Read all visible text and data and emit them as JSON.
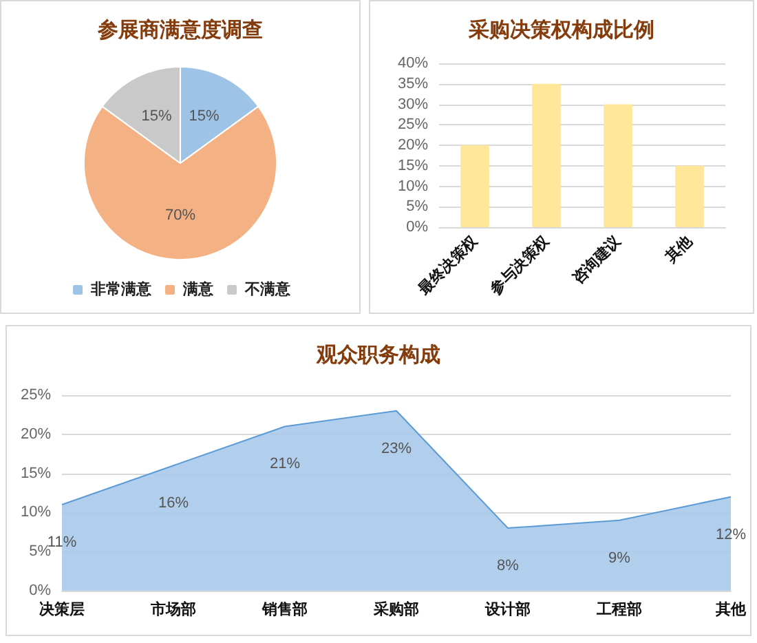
{
  "chart_data": [
    {
      "type": "pie",
      "title": "参展商满意度调查",
      "categories": [
        "非常满意",
        "满意",
        "不满意"
      ],
      "values": [
        15,
        70,
        15
      ],
      "colors": [
        "#9dc3e6",
        "#f4b183",
        "#c9c9c9"
      ],
      "value_labels": [
        "15%",
        "70%",
        "15%"
      ],
      "legend": "bottom"
    },
    {
      "type": "bar",
      "title": "采购决策权构成比例",
      "categories": [
        "最终决策权",
        "参与决策权",
        "咨询建议",
        "其他"
      ],
      "values": [
        20,
        35,
        30,
        15
      ],
      "color": "#ffe699",
      "ylim": [
        0,
        40
      ],
      "yticks": [
        {
          "value": 0,
          "label": "0%"
        },
        {
          "value": 5,
          "label": "5%"
        },
        {
          "value": 10,
          "label": "10%"
        },
        {
          "value": 15,
          "label": "15%"
        },
        {
          "value": 20,
          "label": "20%"
        },
        {
          "value": 25,
          "label": "25%"
        },
        {
          "value": 30,
          "label": "30%"
        },
        {
          "value": 35,
          "label": "35%"
        },
        {
          "value": 40,
          "label": "40%"
        }
      ],
      "grid": "y"
    },
    {
      "type": "area",
      "title": "观众职务构成",
      "categories": [
        "决策层",
        "市场部",
        "销售部",
        "采购部",
        "设计部",
        "工程部",
        "其他"
      ],
      "values": [
        11,
        16,
        21,
        23,
        8,
        9,
        12
      ],
      "color": "#5b9bd5",
      "value_labels": [
        "11%",
        "16%",
        "21%",
        "23%",
        "8%",
        "9%",
        "12%"
      ],
      "ylim": [
        0,
        25
      ],
      "yticks": [
        {
          "value": 0,
          "label": "0%"
        },
        {
          "value": 5,
          "label": "5%"
        },
        {
          "value": 10,
          "label": "10%"
        },
        {
          "value": 15,
          "label": "15%"
        },
        {
          "value": 20,
          "label": "20%"
        },
        {
          "value": 25,
          "label": "25%"
        }
      ],
      "grid": "y",
      "marker": "none"
    }
  ]
}
